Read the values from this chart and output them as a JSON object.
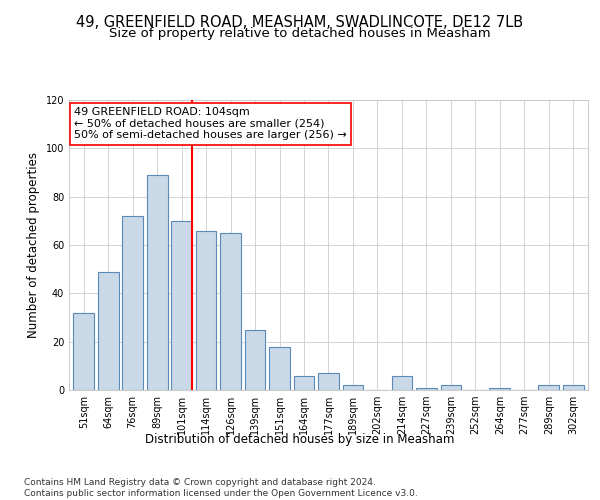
{
  "title": "49, GREENFIELD ROAD, MEASHAM, SWADLINCOTE, DE12 7LB",
  "subtitle": "Size of property relative to detached houses in Measham",
  "xlabel": "Distribution of detached houses by size in Measham",
  "ylabel": "Number of detached properties",
  "bar_labels": [
    "51sqm",
    "64sqm",
    "76sqm",
    "89sqm",
    "101sqm",
    "114sqm",
    "126sqm",
    "139sqm",
    "151sqm",
    "164sqm",
    "177sqm",
    "189sqm",
    "202sqm",
    "214sqm",
    "227sqm",
    "239sqm",
    "252sqm",
    "264sqm",
    "277sqm",
    "289sqm",
    "302sqm"
  ],
  "bar_values": [
    32,
    49,
    72,
    89,
    70,
    66,
    65,
    25,
    18,
    6,
    7,
    2,
    0,
    6,
    1,
    2,
    0,
    1,
    0,
    2,
    2
  ],
  "bar_color": "#c9d9e8",
  "bar_edgecolor": "#5a8ab5",
  "bar_linewidth": 0.8,
  "vline_bar_index": 4,
  "vline_color": "red",
  "vline_linewidth": 1.5,
  "annotation_text": "49 GREENFIELD ROAD: 104sqm\n← 50% of detached houses are smaller (254)\n50% of semi-detached houses are larger (256) →",
  "annotation_box_color": "white",
  "annotation_box_edgecolor": "red",
  "ylim": [
    0,
    120
  ],
  "yticks": [
    0,
    20,
    40,
    60,
    80,
    100,
    120
  ],
  "grid_color": "#cccccc",
  "background_color": "white",
  "footnote": "Contains HM Land Registry data © Crown copyright and database right 2024.\nContains public sector information licensed under the Open Government Licence v3.0.",
  "title_fontsize": 10.5,
  "subtitle_fontsize": 9.5,
  "annotation_fontsize": 8,
  "ylabel_fontsize": 8.5,
  "xlabel_fontsize": 8.5,
  "tick_fontsize": 7,
  "footnote_fontsize": 6.5
}
